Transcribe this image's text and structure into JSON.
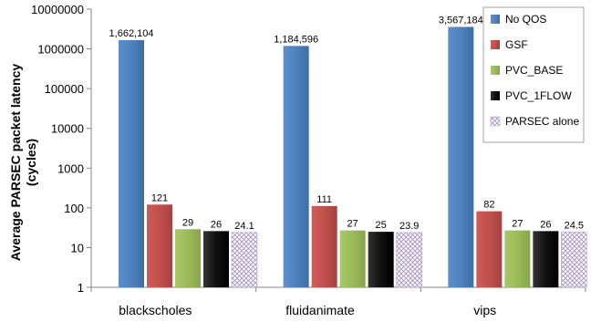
{
  "chart_data": {
    "type": "bar",
    "title": "",
    "xlabel": "",
    "ylabel": "Average PARSEC packet latency (cycles)",
    "ylabel_lines": [
      "Average PARSEC packet latency",
      "(cycles)"
    ],
    "yscale": "log",
    "ylim": [
      1,
      10000000
    ],
    "yticks": [
      "1",
      "10",
      "100",
      "1000",
      "10000",
      "100000",
      "1000000",
      "10000000"
    ],
    "ytick_values": [
      1,
      10,
      100,
      1000,
      10000,
      100000,
      1000000,
      10000000
    ],
    "grid": false,
    "legend_position": "right",
    "categories": [
      "blackscholes",
      "fluidanimate",
      "vips"
    ],
    "series": [
      {
        "name": "No QOS",
        "color": "#4f81bd",
        "pattern": "solid",
        "values": [
          1662104,
          1184596,
          3567184
        ],
        "labels": [
          "1,662,104",
          "1,184,596",
          "3,567,184"
        ]
      },
      {
        "name": "GSF",
        "color": "#c0504d",
        "pattern": "solid",
        "values": [
          121,
          111,
          82
        ],
        "labels": [
          "121",
          "111",
          "82"
        ]
      },
      {
        "name": "PVC_BASE",
        "color": "#9bbb59",
        "pattern": "solid",
        "values": [
          29,
          27,
          27
        ],
        "labels": [
          "29",
          "27",
          "27"
        ]
      },
      {
        "name": "PVC_1FLOW",
        "color": "#1a1a1a",
        "pattern": "solid",
        "values": [
          26,
          25,
          26
        ],
        "labels": [
          "26",
          "25",
          "26"
        ]
      },
      {
        "name": "PARSEC alone",
        "color": "#b3a2c7",
        "pattern": "crosshatch",
        "values": [
          24.1,
          23.9,
          24.5
        ],
        "labels": [
          "24.1",
          "23.9",
          "24.5"
        ]
      }
    ]
  }
}
